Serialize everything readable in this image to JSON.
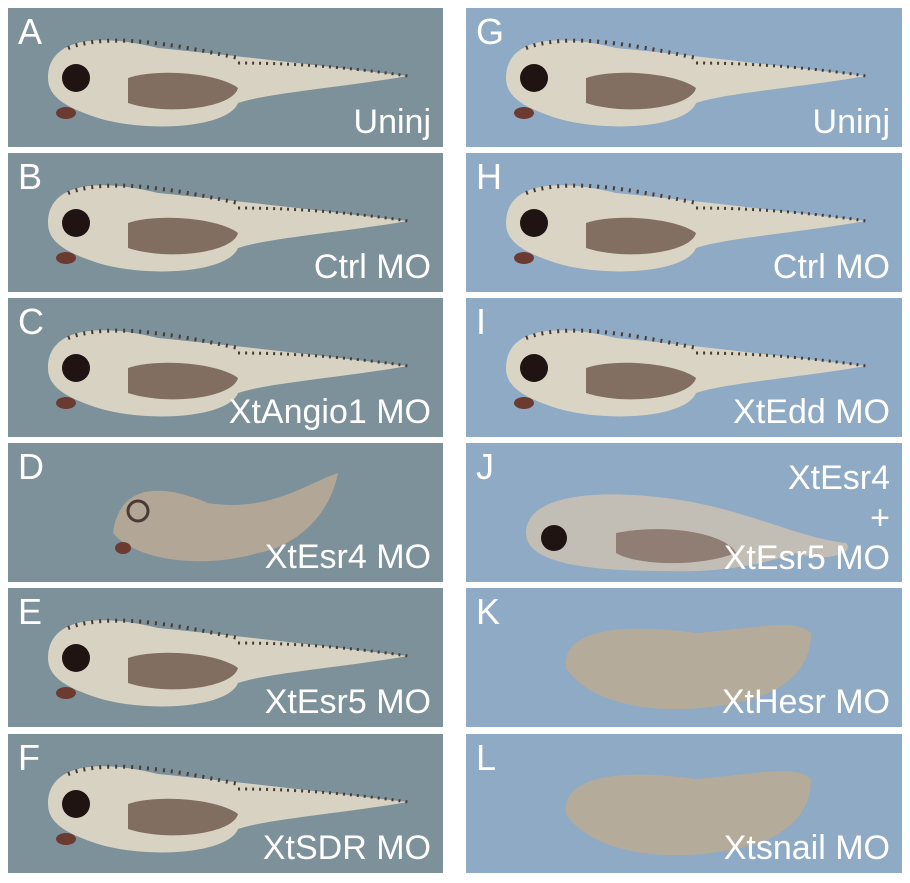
{
  "panels": [
    {
      "letter": "A",
      "label": "Uninj",
      "column": "left",
      "phenotype": "normal"
    },
    {
      "letter": "B",
      "label": "Ctrl MO",
      "column": "left",
      "phenotype": "normal"
    },
    {
      "letter": "C",
      "label": "XtAngio1 MO",
      "column": "left",
      "phenotype": "normal"
    },
    {
      "letter": "D",
      "label": "XtEsr4 MO",
      "column": "left",
      "phenotype": "defective"
    },
    {
      "letter": "E",
      "label": "XtEsr5 MO",
      "column": "left",
      "phenotype": "normal"
    },
    {
      "letter": "F",
      "label": "XtSDR MO",
      "column": "left",
      "phenotype": "normal"
    },
    {
      "letter": "G",
      "label": "Uninj",
      "column": "right",
      "phenotype": "normal"
    },
    {
      "letter": "H",
      "label": "Ctrl MO",
      "column": "right",
      "phenotype": "normal"
    },
    {
      "letter": "I",
      "label": "XtEdd MO",
      "column": "right",
      "phenotype": "normal"
    },
    {
      "letter": "J",
      "label_lines": [
        "XtEsr4",
        "+",
        "XtEsr5 MO"
      ],
      "column": "right",
      "phenotype": "curled"
    },
    {
      "letter": "K",
      "label": "XtHesr MO",
      "column": "right",
      "phenotype": "severe"
    },
    {
      "letter": "L",
      "label": "Xtsnail MO",
      "column": "right",
      "phenotype": "severe"
    }
  ],
  "colors": {
    "left_bg": "#7d919b",
    "right_bg": "#8eaac4",
    "text": "#ffffff"
  }
}
